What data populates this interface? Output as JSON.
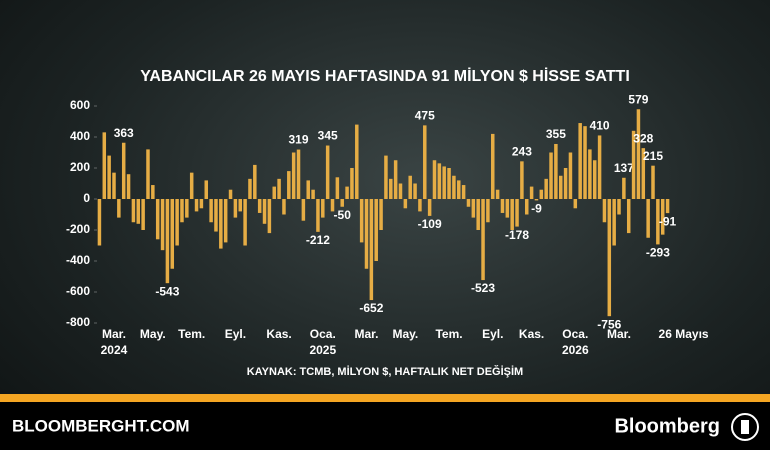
{
  "chart_data": {
    "type": "bar",
    "title": "YABANCILAR 26 MAYIS HAFTASINDA 91 MİLYON $ HİSSE SATTI",
    "source": "KAYNAK: TCMB, MİLYON $, HAFTALIK NET DEĞİŞİM",
    "color": "#e6ad45",
    "ylim": [
      -800,
      600
    ],
    "yticks": [
      600,
      400,
      200,
      0,
      -200,
      -400,
      -600,
      -800
    ],
    "categories": [
      null,
      null,
      null,
      "Mar.\n2024",
      null,
      null,
      null,
      null,
      null,
      null,
      null,
      "May.",
      null,
      null,
      null,
      null,
      null,
      null,
      null,
      "Tem.",
      null,
      null,
      null,
      null,
      null,
      null,
      null,
      null,
      "Eyl.",
      null,
      null,
      null,
      null,
      null,
      null,
      null,
      null,
      "Kas.",
      null,
      null,
      null,
      null,
      null,
      null,
      null,
      null,
      "Oca.\n2025",
      null,
      null,
      null,
      null,
      null,
      null,
      null,
      null,
      "Mar.",
      null,
      null,
      null,
      null,
      null,
      null,
      null,
      "May.",
      null,
      null,
      null,
      null,
      null,
      null,
      null,
      null,
      "Tem.",
      null,
      null,
      null,
      null,
      null,
      null,
      null,
      null,
      "Eyl.",
      null,
      null,
      null,
      null,
      null,
      null,
      null,
      "Kas.",
      null,
      null,
      null,
      null,
      null,
      null,
      null,
      null,
      "Oca.\n2026",
      null,
      null,
      null,
      null,
      null,
      null,
      null,
      null,
      "Mar.",
      null,
      null,
      null,
      null,
      null,
      null,
      null,
      null,
      null,
      "26 Mayıs"
    ],
    "values": [
      -300,
      430,
      280,
      170,
      -120,
      363,
      160,
      -150,
      -160,
      -200,
      320,
      90,
      -260,
      -330,
      -543,
      -450,
      -300,
      -150,
      -120,
      170,
      -80,
      -60,
      120,
      -150,
      -210,
      -320,
      -280,
      60,
      -120,
      -80,
      -300,
      130,
      220,
      -90,
      -160,
      -220,
      80,
      130,
      -100,
      180,
      300,
      319,
      -140,
      120,
      60,
      -212,
      -120,
      345,
      -80,
      140,
      -50,
      80,
      200,
      480,
      -280,
      -450,
      -652,
      -400,
      -200,
      280,
      130,
      250,
      100,
      -60,
      150,
      100,
      -80,
      475,
      -109,
      250,
      230,
      210,
      200,
      150,
      120,
      90,
      -50,
      -120,
      -200,
      -523,
      -150,
      420,
      60,
      -90,
      -120,
      -200,
      -178,
      243,
      -100,
      80,
      -9,
      60,
      130,
      300,
      355,
      150,
      200,
      300,
      -60,
      490,
      470,
      320,
      250,
      410,
      -150,
      -756,
      -300,
      -100,
      137,
      -220,
      440,
      579,
      328,
      -250,
      215,
      -293,
      -230,
      -91
    ],
    "value_labels": [
      null,
      null,
      null,
      null,
      null,
      "363",
      null,
      null,
      null,
      null,
      null,
      null,
      null,
      null,
      "-543",
      null,
      null,
      null,
      null,
      null,
      null,
      null,
      null,
      null,
      null,
      null,
      null,
      null,
      null,
      null,
      null,
      null,
      null,
      null,
      null,
      null,
      null,
      null,
      null,
      null,
      null,
      "319",
      null,
      null,
      null,
      "-212",
      null,
      "345",
      null,
      null,
      "-50",
      null,
      null,
      null,
      null,
      null,
      "-652",
      null,
      null,
      null,
      null,
      null,
      null,
      null,
      null,
      null,
      null,
      "475",
      "-109",
      null,
      null,
      null,
      null,
      null,
      null,
      null,
      null,
      null,
      null,
      "-523",
      null,
      null,
      null,
      null,
      null,
      null,
      "-178",
      "243",
      null,
      null,
      "-9",
      null,
      null,
      null,
      "355",
      null,
      null,
      null,
      null,
      null,
      null,
      null,
      null,
      "410",
      null,
      "-756",
      null,
      null,
      "137",
      null,
      null,
      "579",
      "328",
      null,
      "215",
      "-293",
      null,
      "-91"
    ]
  },
  "footer": {
    "site": "BLOOMBERGHT.COM",
    "brand": "Bloomberg"
  }
}
